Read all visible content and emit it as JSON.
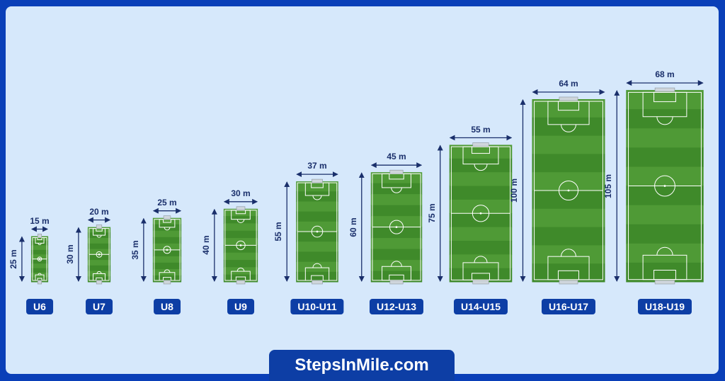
{
  "fields": [
    {
      "group": "U6",
      "width_label": "15 m",
      "length_label": "25 m",
      "width_m": 15,
      "length_m": 25
    },
    {
      "group": "U7",
      "width_label": "20 m",
      "length_label": "30 m",
      "width_m": 20,
      "length_m": 30
    },
    {
      "group": "U8",
      "width_label": "25 m",
      "length_label": "35 m",
      "width_m": 25,
      "length_m": 35
    },
    {
      "group": "U9",
      "width_label": "30 m",
      "length_label": "40 m",
      "width_m": 30,
      "length_m": 40
    },
    {
      "group": "U10-U11",
      "width_label": "37 m",
      "length_label": "55 m",
      "width_m": 37,
      "length_m": 55
    },
    {
      "group": "U12-U13",
      "width_label": "45 m",
      "length_label": "60 m",
      "width_m": 45,
      "length_m": 60
    },
    {
      "group": "U14-U15",
      "width_label": "55 m",
      "length_label": "75 m",
      "width_m": 55,
      "length_m": 75
    },
    {
      "group": "U16-U17",
      "width_label": "64 m",
      "length_label": "100 m",
      "width_m": 64,
      "length_m": 100
    },
    {
      "group": "U18-U19",
      "width_label": "68 m",
      "length_label": "105 m",
      "width_m": 68,
      "length_m": 105
    }
  ],
  "brand": {
    "text": "StepsInMile.com"
  },
  "colors": {
    "outer_border": "#0a3fb8",
    "background": "#d6e8fb",
    "pitch_light": "#4f9a36",
    "pitch_dark": "#3f8a2a",
    "lines": "#ffffff",
    "arrows": "#1a2f6b",
    "badge": "#0d3ea5"
  }
}
